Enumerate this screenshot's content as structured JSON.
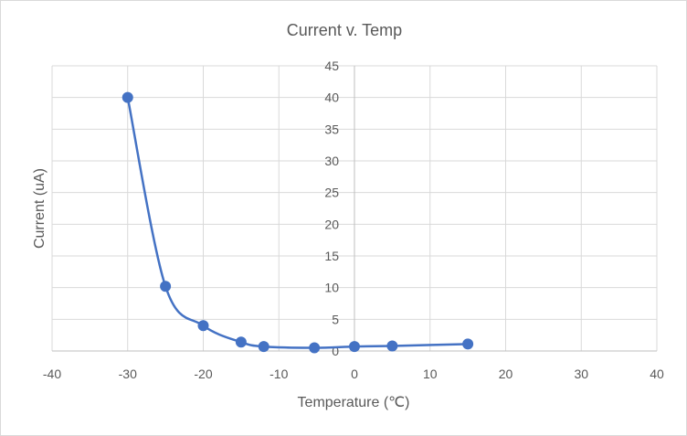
{
  "chart_data": {
    "type": "scatter",
    "title": "Current v. Temp",
    "xlabel": "Temperature (℃)",
    "ylabel": "Current (uA)",
    "xlim": [
      -40,
      40
    ],
    "ylim": [
      0,
      45
    ],
    "xticks": [
      "-40",
      "-30",
      "-20",
      "-10",
      "0",
      "10",
      "20",
      "30",
      "40"
    ],
    "yticks": [
      "0",
      "5",
      "10",
      "15",
      "20",
      "25",
      "30",
      "35",
      "40",
      "45"
    ],
    "grid": true,
    "smooth_line": true,
    "series": [
      {
        "name": "Current",
        "color": "#4472c4",
        "x": [
          -30,
          -25,
          -20,
          -15,
          -12,
          -5.3,
          0,
          5,
          15
        ],
        "y": [
          40,
          10.2,
          4,
          1.4,
          0.7,
          0.5,
          0.7,
          0.8,
          1.1
        ]
      }
    ]
  }
}
